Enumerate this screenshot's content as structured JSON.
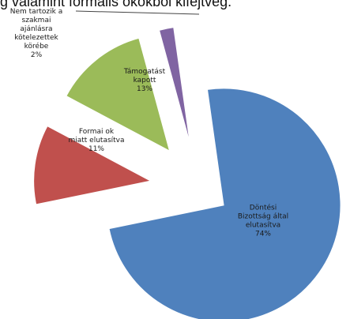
{
  "header": {
    "title_fragment": "g valamint formális okokból kifejtvég."
  },
  "chart_data": {
    "type": "pie",
    "exploded": true,
    "categories": [
      "Döntési Bizottság által elutasítva",
      "Formai ok miatt elutasítva",
      "Támogatást kapott",
      "Nem tartozik a szakmai ajánlásra kötelezettek körébe"
    ],
    "values": [
      74,
      11,
      13,
      2
    ],
    "value_labels": [
      "74%",
      "11%",
      "13%",
      "2%"
    ],
    "label_lines": [
      [
        "Döntési",
        "Bizottság által",
        "elutasítva",
        "74%"
      ],
      [
        "Formai ok",
        "miatt elutasítva",
        "11%"
      ],
      [
        "Támogatást",
        "kapott",
        "13%"
      ],
      [
        "Nem tartozik a",
        "szakmai",
        "ajánlásra",
        "kötelezettek",
        "körébe",
        "2%"
      ]
    ],
    "colors": [
      "#4f81bd",
      "#c0504d",
      "#9bbb59",
      "#8064a2"
    ],
    "legend": "none"
  }
}
